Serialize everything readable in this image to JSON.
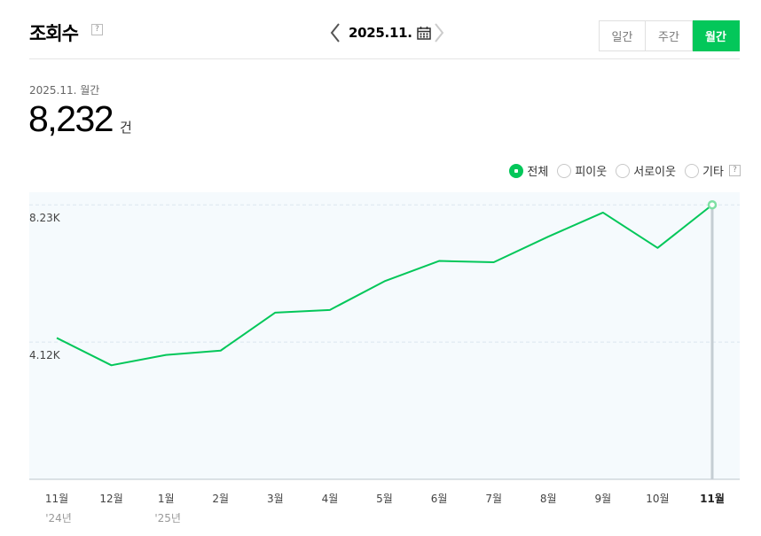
{
  "header": {
    "title": "조회수",
    "help_symbol": "?",
    "date": "2025.11.",
    "tabs": [
      {
        "label": "일간",
        "active": false
      },
      {
        "label": "주간",
        "active": false
      },
      {
        "label": "월간",
        "active": true
      }
    ]
  },
  "summary": {
    "period_label": "2025.11. 월간",
    "value": "8,232",
    "unit": "건"
  },
  "filters": [
    {
      "label": "전체",
      "selected": true
    },
    {
      "label": "피이웃",
      "selected": false
    },
    {
      "label": "서로이웃",
      "selected": false
    },
    {
      "label": "기타",
      "selected": false
    }
  ],
  "colors": {
    "accent": "#03c75a",
    "plot_bg": "#f5fafd",
    "grid": "#dbe6ee"
  },
  "chart_data": {
    "type": "line",
    "categories": [
      "11월",
      "12월",
      "1월",
      "2월",
      "3월",
      "4월",
      "5월",
      "6월",
      "7월",
      "8월",
      "9월",
      "10월",
      "11월"
    ],
    "year_labels": [
      {
        "index": 0,
        "label": "'24년"
      },
      {
        "index": 2,
        "label": "'25년"
      }
    ],
    "series": [
      {
        "values": [
          4240,
          3420,
          3730,
          3860,
          5000,
          5080,
          5940,
          6550,
          6510,
          7280,
          8000,
          6940,
          8232
        ]
      }
    ],
    "yticks": [
      {
        "value": 4116,
        "label": "4.12K"
      },
      {
        "value": 8232,
        "label": "8.23K"
      }
    ],
    "ylim": [
      0,
      8610
    ],
    "selected_index": 12,
    "grid": true
  }
}
